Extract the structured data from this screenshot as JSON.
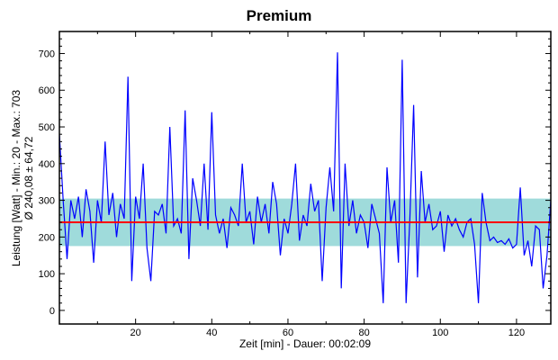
{
  "chart_data": {
    "type": "line",
    "title": "Premium",
    "xlabel": "Zeit [min] - Dauer: 00:02:09",
    "ylabel_lines": [
      "Leistung [Watt] - Min.: 20 - Max.: 703",
      "Ø 240,08 ± 64,72"
    ],
    "xlim": [
      0,
      129
    ],
    "ylim": [
      -37,
      760
    ],
    "xticks": [
      20,
      40,
      60,
      80,
      100,
      120
    ],
    "yticks": [
      0,
      100,
      200,
      300,
      400,
      500,
      600,
      700
    ],
    "grid": false,
    "mean": 240.08,
    "std": 64.72,
    "colors": {
      "line": "#0000ff",
      "mean": "#ff0000",
      "band": "#7fcfcf"
    },
    "series": [
      {
        "name": "Leistung",
        "x_start": 0,
        "x_step": 1,
        "values": [
          480,
          300,
          140,
          300,
          250,
          310,
          200,
          330,
          270,
          130,
          300,
          240,
          460,
          260,
          320,
          200,
          290,
          250,
          637,
          80,
          310,
          250,
          400,
          170,
          80,
          270,
          260,
          290,
          210,
          500,
          230,
          250,
          210,
          545,
          140,
          360,
          300,
          230,
          400,
          220,
          540,
          260,
          210,
          250,
          170,
          280,
          260,
          230,
          400,
          240,
          270,
          180,
          310,
          240,
          290,
          210,
          350,
          290,
          150,
          250,
          210,
          290,
          400,
          190,
          260,
          230,
          345,
          270,
          300,
          80,
          280,
          390,
          270,
          703,
          60,
          400,
          230,
          300,
          210,
          260,
          240,
          170,
          290,
          250,
          210,
          20,
          390,
          240,
          300,
          130,
          683,
          20,
          250,
          560,
          90,
          380,
          240,
          290,
          220,
          230,
          270,
          160,
          260,
          230,
          250,
          220,
          200,
          240,
          250,
          180,
          20,
          320,
          240,
          190,
          200,
          185,
          190,
          180,
          195,
          170,
          180,
          335,
          150,
          190,
          120,
          230,
          220,
          60,
          150,
          300
        ]
      }
    ]
  }
}
